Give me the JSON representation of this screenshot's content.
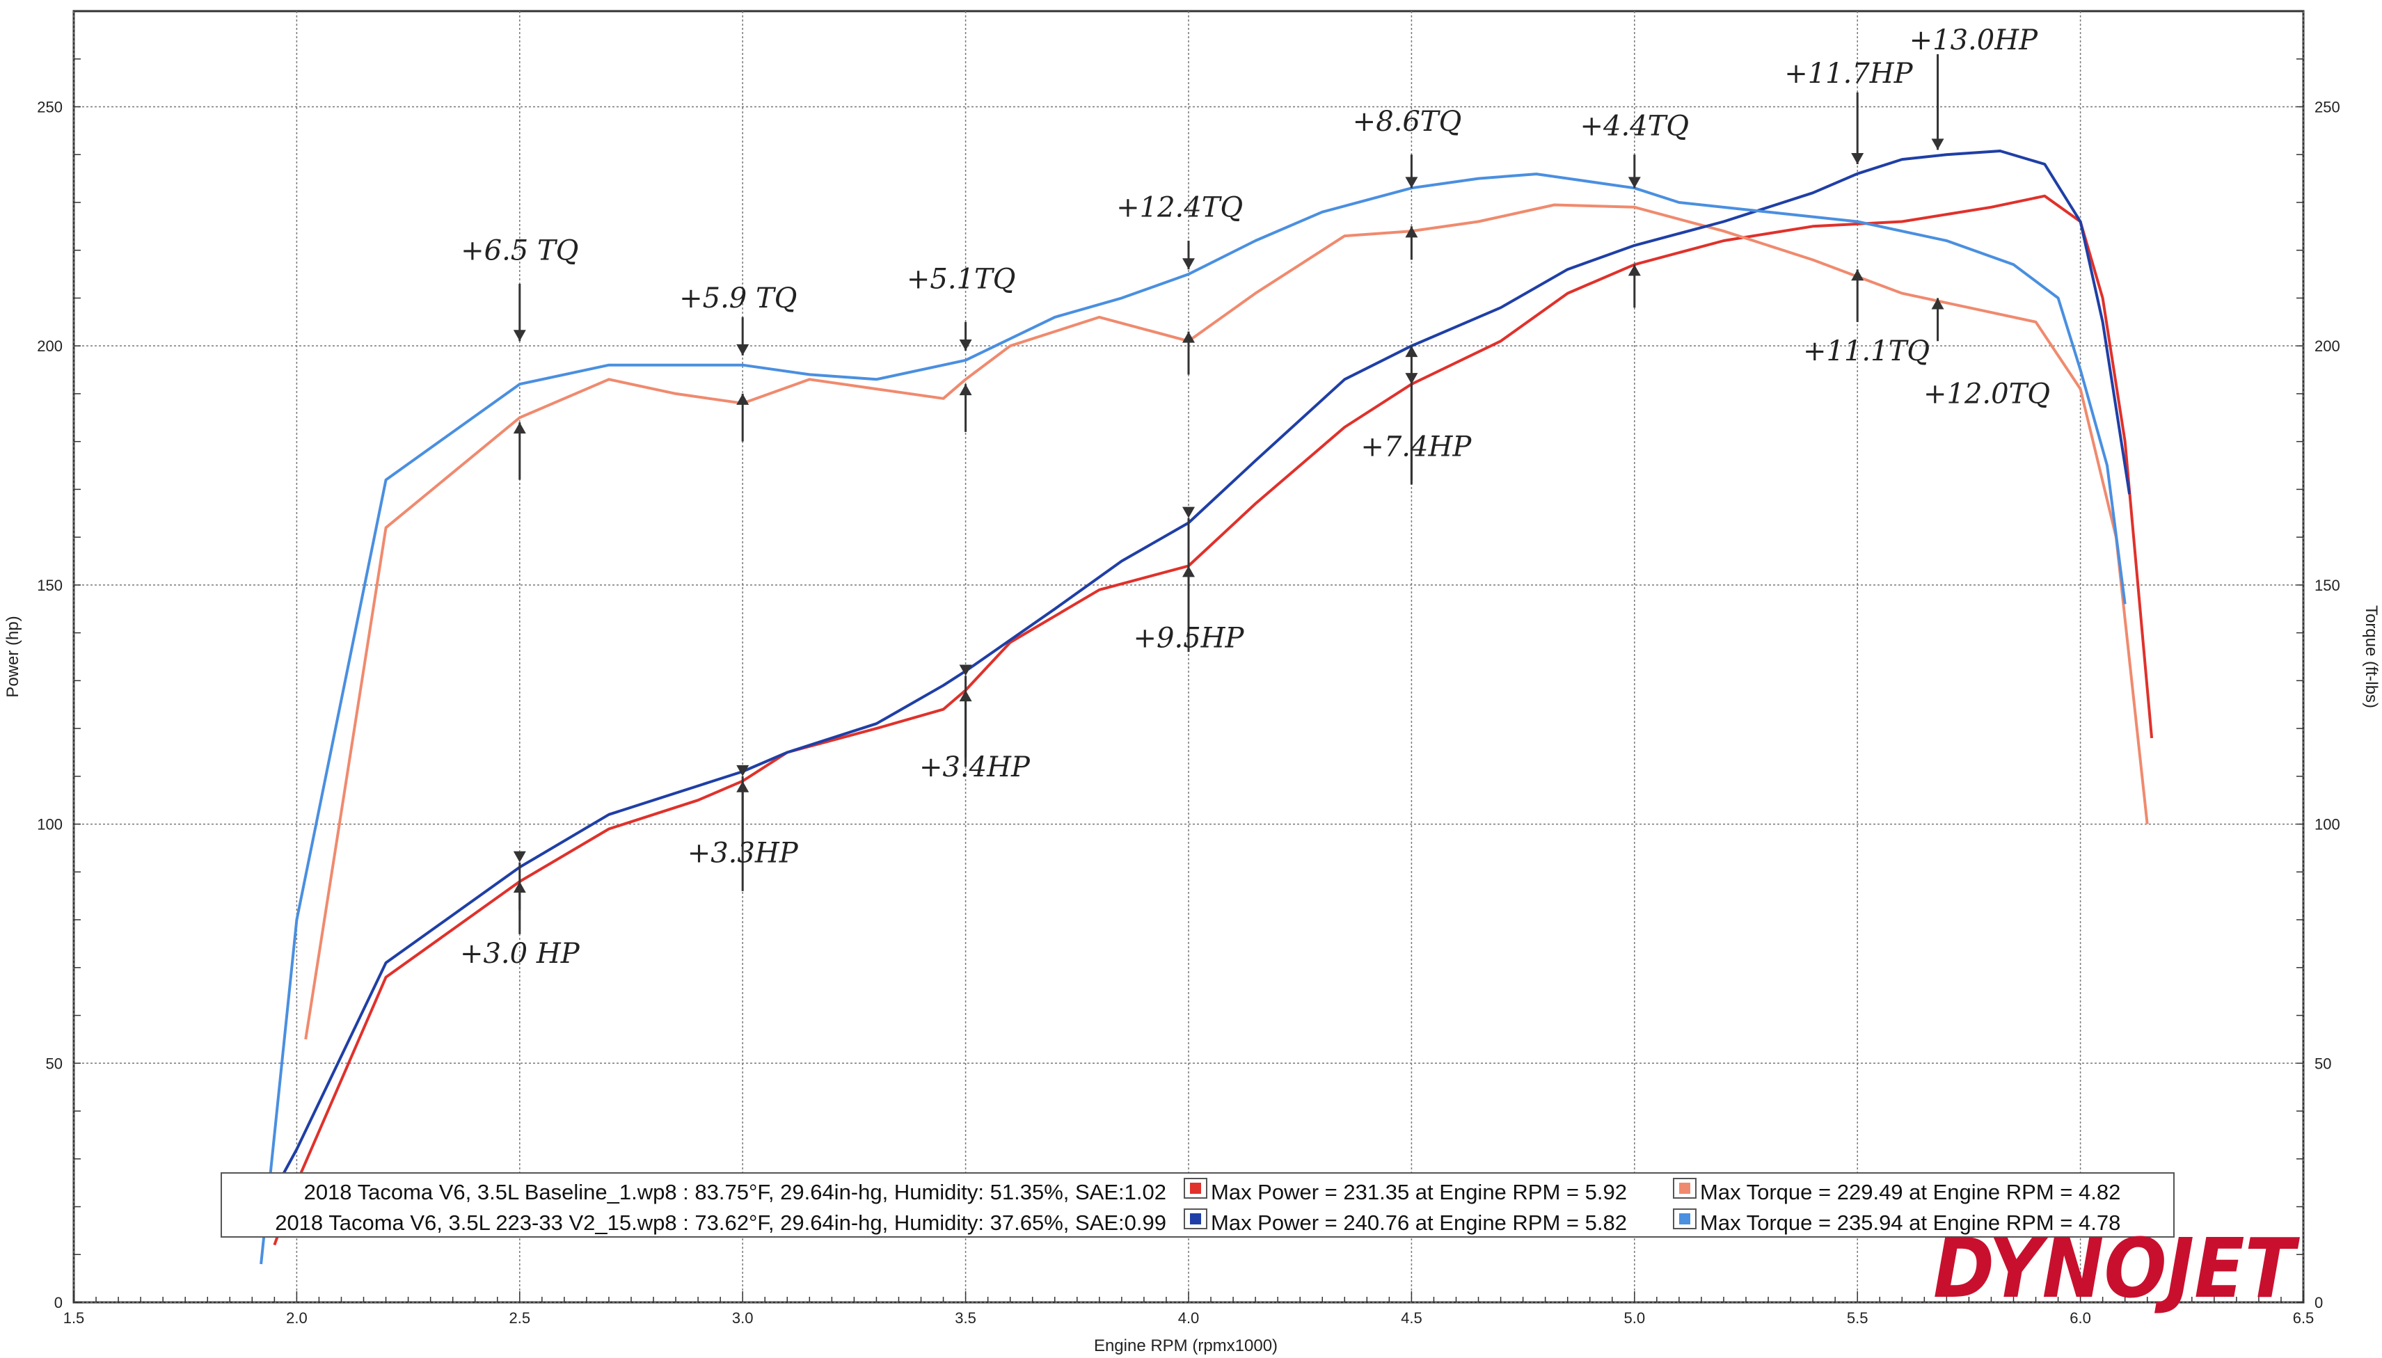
{
  "chart_data": {
    "type": "line",
    "xlabel": "Engine RPM (rpmx1000)",
    "ylabel_left": "Power (hp)",
    "ylabel_right": "Torque (ft-lbs)",
    "xlim": [
      1.5,
      6.5
    ],
    "ylim": [
      0,
      270
    ],
    "x_ticks": [
      "1.5",
      "2.0",
      "2.5",
      "3.0",
      "3.5",
      "4.0",
      "4.5",
      "5.0",
      "5.5",
      "6.0",
      "6.5"
    ],
    "y_ticks": [
      "0",
      "50",
      "100",
      "150",
      "200",
      "250"
    ],
    "grid": true,
    "series": [
      {
        "name": "2018 Tacoma V6, 3.5L Baseline_1.wp8 — Power",
        "color": "#e0312b",
        "x": [
          1.95,
          2.0,
          2.2,
          2.5,
          2.7,
          2.9,
          3.0,
          3.1,
          3.3,
          3.45,
          3.5,
          3.6,
          3.8,
          4.0,
          4.15,
          4.35,
          4.5,
          4.7,
          4.85,
          5.0,
          5.2,
          5.4,
          5.6,
          5.8,
          5.92,
          6.0,
          6.05,
          6.1,
          6.16
        ],
        "y": [
          12,
          25,
          68,
          88,
          99,
          105,
          109,
          115,
          120,
          124,
          128,
          138,
          149,
          154,
          167,
          183,
          192,
          201,
          211,
          217,
          222,
          225,
          226,
          229,
          231.35,
          226,
          210,
          180,
          118
        ]
      },
      {
        "name": "2018 Tacoma V6, 3.5L Baseline_1.wp8 — Torque",
        "color": "#f08a6e",
        "x": [
          2.02,
          2.2,
          2.5,
          2.7,
          2.85,
          3.0,
          3.15,
          3.3,
          3.45,
          3.5,
          3.6,
          3.8,
          4.0,
          4.15,
          4.35,
          4.5,
          4.65,
          4.82,
          5.0,
          5.2,
          5.4,
          5.6,
          5.75,
          5.9,
          6.0,
          6.08,
          6.15
        ],
        "y": [
          55,
          162,
          185,
          193,
          190,
          188,
          193,
          191,
          189,
          193,
          200,
          206,
          201,
          211,
          223,
          224,
          226,
          229.49,
          229,
          224,
          218,
          211,
          208,
          205,
          191,
          160,
          100
        ]
      },
      {
        "name": "2018 Tacoma V6, 3.5L 223-33 V2_15.wp8 — Power",
        "color": "#1f3fa6",
        "x": [
          1.93,
          2.0,
          2.2,
          2.5,
          2.7,
          2.9,
          3.0,
          3.1,
          3.3,
          3.45,
          3.5,
          3.7,
          3.85,
          4.0,
          4.15,
          4.35,
          4.5,
          4.7,
          4.85,
          5.0,
          5.2,
          5.4,
          5.5,
          5.6,
          5.7,
          5.82,
          5.92,
          6.0,
          6.05,
          6.11
        ],
        "y": [
          20,
          32,
          71,
          91,
          102,
          108,
          111,
          115,
          121,
          129,
          132,
          145,
          155,
          163,
          176,
          193,
          200,
          208,
          216,
          221,
          226,
          232,
          236,
          239,
          240,
          240.76,
          238,
          226,
          205,
          169
        ]
      },
      {
        "name": "2018 Tacoma V6, 3.5L 223-33 V2_15.wp8 — Torque",
        "color": "#4a8fe0",
        "x": [
          1.92,
          2.0,
          2.2,
          2.5,
          2.7,
          3.0,
          3.15,
          3.3,
          3.5,
          3.7,
          3.85,
          4.0,
          4.15,
          4.3,
          4.5,
          4.65,
          4.78,
          5.0,
          5.1,
          5.3,
          5.5,
          5.7,
          5.85,
          5.95,
          6.0,
          6.06,
          6.1
        ],
        "y": [
          8,
          80,
          172,
          192,
          196,
          196,
          194,
          193,
          197,
          206,
          210,
          215,
          222,
          228,
          233,
          235,
          235.94,
          233,
          230,
          228,
          226,
          222,
          217,
          210,
          195,
          175,
          146
        ]
      }
    ],
    "annotations": [
      {
        "text": "+6.5 TQ",
        "x": 2.5,
        "y": 218
      },
      {
        "text": "+5.9 TQ",
        "x": 2.99,
        "y": 208
      },
      {
        "text": "+5.1TQ",
        "x": 3.49,
        "y": 212
      },
      {
        "text": "+12.4TQ",
        "x": 3.98,
        "y": 227
      },
      {
        "text": "+8.6TQ",
        "x": 4.49,
        "y": 245
      },
      {
        "text": "+4.4TQ",
        "x": 5.0,
        "y": 244
      },
      {
        "text": "+11.7HP",
        "x": 5.48,
        "y": 255
      },
      {
        "text": "+13.0HP",
        "x": 5.76,
        "y": 262
      },
      {
        "text": "+11.1TQ",
        "x": 5.52,
        "y": 197
      },
      {
        "text": "+12.0TQ",
        "x": 5.79,
        "y": 188
      },
      {
        "text": "+7.4HP",
        "x": 4.51,
        "y": 177
      },
      {
        "text": "+9.5HP",
        "x": 4.0,
        "y": 137
      },
      {
        "text": "+3.4HP",
        "x": 3.52,
        "y": 110
      },
      {
        "text": "+3.3HP",
        "x": 3.0,
        "y": 92
      },
      {
        "text": "+3.0 HP",
        "x": 2.5,
        "y": 71
      }
    ],
    "legend": [
      {
        "run": "2018 Tacoma V6, 3.5L Baseline_1.wp8 : 83.75°F, 29.64in-hg, Humidity: 51.35%, SAE:1.02",
        "power_text": "Max Power = 231.35 at Engine RPM = 5.92",
        "torque_text": "Max Torque = 229.49 at Engine RPM = 4.82",
        "power_color": "#e0312b",
        "torque_color": "#f08a6e"
      },
      {
        "run": "2018 Tacoma V6, 3.5L 223-33 V2_15.wp8 : 73.62°F, 29.64in-hg, Humidity: 37.65%, SAE:0.99",
        "power_text": "Max Power = 240.76 at Engine RPM = 5.82",
        "torque_text": "Max Torque = 235.94 at Engine RPM = 4.78",
        "power_color": "#1f3fa6",
        "torque_color": "#4a8fe0"
      }
    ],
    "legend_placement": "bottom-center",
    "brand": "DYNOJET"
  }
}
